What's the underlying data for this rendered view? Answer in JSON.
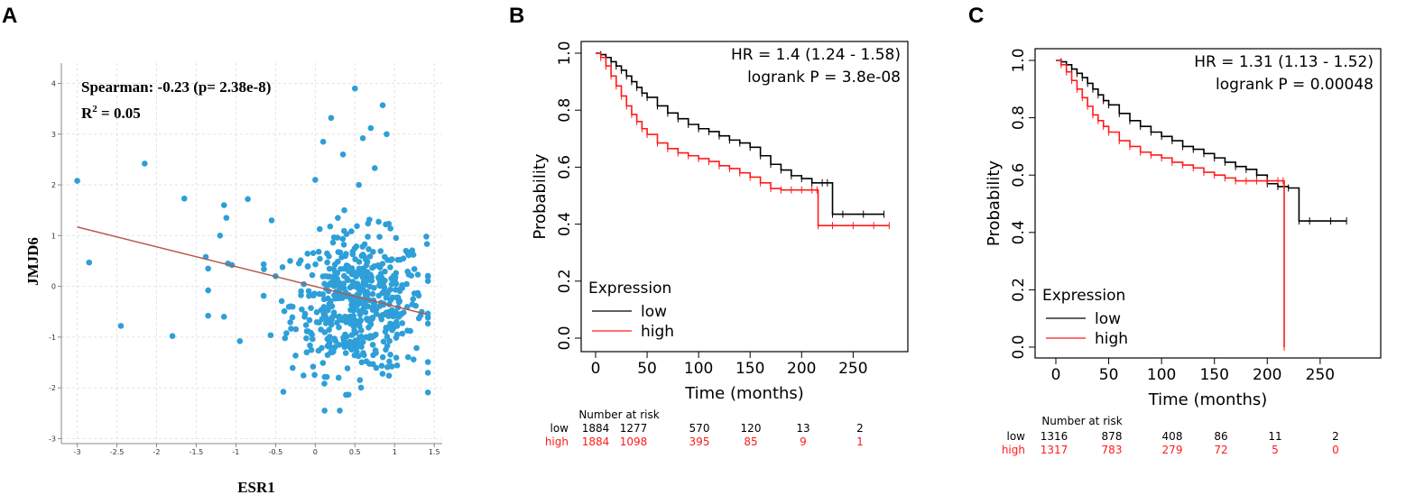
{
  "panel_labels": [
    "A",
    "B",
    "C"
  ],
  "chart_data": [
    {
      "type": "scatter",
      "panel": "A",
      "xlabel": "ESR1",
      "ylabel": "JMJD6",
      "annotation_line1": "Spearman: -0.23 (p= 2.38e-8)",
      "annotation_line2_prefix": "R",
      "annotation_line2_sup": "2",
      "annotation_line2_suffix": " = 0.05",
      "xlim": [
        -3.2,
        1.6
      ],
      "ylim": [
        -3.1,
        4.4
      ],
      "xticks": [
        -3,
        -2.5,
        -2,
        -1.5,
        -1,
        -0.5,
        0,
        0.5,
        1,
        1.5
      ],
      "xtick_labels": [
        "-3",
        "-2.5",
        "-2",
        "-1.5",
        "-1",
        "-0.5",
        "0",
        "0.5",
        "1",
        "1.5"
      ],
      "yticks": [
        -3,
        -2,
        -1,
        0,
        1,
        2,
        3,
        4
      ],
      "ytick_labels": [
        "-3",
        "-2",
        "-1",
        "0",
        "1",
        "2",
        "3",
        "4"
      ],
      "grid": true,
      "point_color": "#2e9fd8",
      "line_color": "#b5584a",
      "fit_line": {
        "x": [
          -3,
          1.4
        ],
        "y": [
          1.17,
          -0.55
        ]
      },
      "points_outliers": [
        [
          -3.0,
          2.08
        ],
        [
          -2.85,
          0.47
        ],
        [
          -2.45,
          -0.78
        ],
        [
          -2.15,
          2.42
        ],
        [
          -1.8,
          -0.98
        ],
        [
          -1.65,
          1.73
        ],
        [
          -1.38,
          0.58
        ],
        [
          -1.35,
          0.35
        ],
        [
          -1.35,
          -0.08
        ],
        [
          -1.35,
          -0.58
        ],
        [
          -1.2,
          1.0
        ],
        [
          -1.15,
          1.6
        ],
        [
          -1.12,
          1.35
        ],
        [
          -1.1,
          0.45
        ],
        [
          -1.15,
          -0.6
        ],
        [
          -1.05,
          0.42
        ],
        [
          -0.95,
          -1.08
        ],
        [
          -0.85,
          1.72
        ],
        [
          -0.55,
          1.3
        ],
        [
          -0.5,
          0.2
        ],
        [
          0.1,
          2.85
        ],
        [
          0.2,
          3.32
        ],
        [
          0.5,
          3.9
        ],
        [
          0.35,
          2.6
        ],
        [
          0.6,
          2.92
        ],
        [
          0.7,
          3.12
        ],
        [
          0.75,
          2.33
        ],
        [
          0.85,
          3.57
        ],
        [
          0.9,
          3.0
        ],
        [
          1.4,
          0.98
        ],
        [
          0.0,
          2.1
        ],
        [
          0.55,
          2.0
        ]
      ],
      "cluster": {
        "n": 540,
        "x_mean": 0.55,
        "x_sd": 0.42,
        "y_mean": -0.35,
        "y_sd": 0.68
      }
    },
    {
      "type": "line",
      "panel": "B",
      "xlabel": "Time (months)",
      "ylabel": "Probability",
      "xlim": [
        0,
        290
      ],
      "ylim": [
        0,
        1
      ],
      "xticks": [
        0,
        50,
        100,
        150,
        200,
        250
      ],
      "xtick_labels": [
        "0",
        "50",
        "100",
        "150",
        "200",
        "250"
      ],
      "yticks": [
        0,
        0.2,
        0.4,
        0.6,
        0.8,
        1.0
      ],
      "ytick_labels": [
        "0.0",
        "0.2",
        "0.4",
        "0.6",
        "0.8",
        "1.0"
      ],
      "hr_text": "HR = 1.4 (1.24 - 1.58)",
      "logrank_text": "logrank P = 3.8e-08",
      "legend_title": "Expression",
      "legend_low": "low",
      "legend_high": "high",
      "series": [
        {
          "name": "low",
          "color": "#000000",
          "x": [
            0,
            5,
            10,
            15,
            20,
            25,
            30,
            35,
            40,
            45,
            50,
            60,
            70,
            80,
            90,
            100,
            110,
            120,
            130,
            140,
            150,
            160,
            170,
            180,
            190,
            200,
            210,
            220,
            225,
            230,
            240,
            260,
            280
          ],
          "y": [
            1.0,
            0.995,
            0.985,
            0.97,
            0.955,
            0.94,
            0.92,
            0.9,
            0.88,
            0.86,
            0.845,
            0.815,
            0.79,
            0.77,
            0.75,
            0.735,
            0.725,
            0.71,
            0.695,
            0.685,
            0.67,
            0.64,
            0.61,
            0.59,
            0.57,
            0.56,
            0.545,
            0.545,
            0.545,
            0.435,
            0.435,
            0.435,
            0.435
          ]
        },
        {
          "name": "high",
          "color": "#ff1a1a",
          "x": [
            0,
            5,
            10,
            15,
            20,
            25,
            30,
            35,
            40,
            45,
            50,
            60,
            70,
            80,
            90,
            100,
            110,
            120,
            130,
            140,
            150,
            160,
            170,
            180,
            190,
            200,
            210,
            215,
            216,
            230,
            250,
            270,
            285
          ],
          "y": [
            1.0,
            0.985,
            0.955,
            0.92,
            0.885,
            0.85,
            0.815,
            0.785,
            0.76,
            0.735,
            0.715,
            0.685,
            0.665,
            0.65,
            0.64,
            0.63,
            0.62,
            0.605,
            0.595,
            0.58,
            0.565,
            0.545,
            0.525,
            0.52,
            0.52,
            0.52,
            0.52,
            0.52,
            0.395,
            0.395,
            0.395,
            0.395,
            0.395
          ]
        }
      ],
      "risk_table": {
        "header": "Number at risk",
        "times": [
          0,
          50,
          100,
          150,
          200,
          250
        ],
        "rows": [
          {
            "name": "low",
            "color": "#000000",
            "values": [
              "1884",
              "1277",
              "570",
              "120",
              "13",
              "2"
            ]
          },
          {
            "name": "high",
            "color": "#ff1a1a",
            "values": [
              "1884",
              "1098",
              "395",
              "85",
              "9",
              "1"
            ]
          }
        ]
      }
    },
    {
      "type": "line",
      "panel": "C",
      "xlabel": "Time (months)",
      "ylabel": "Probability",
      "xlim": [
        0,
        280
      ],
      "ylim": [
        0,
        1
      ],
      "xticks": [
        0,
        50,
        100,
        150,
        200,
        250
      ],
      "xtick_labels": [
        "0",
        "50",
        "100",
        "150",
        "200",
        "250"
      ],
      "yticks": [
        0,
        0.2,
        0.4,
        0.6,
        0.8,
        1.0
      ],
      "ytick_labels": [
        "0.0",
        "0.2",
        "0.4",
        "0.6",
        "0.8",
        "1.0"
      ],
      "hr_text": "HR = 1.31 (1.13 - 1.52)",
      "logrank_text": "logrank P = 0.00048",
      "legend_title": "Expression",
      "legend_low": "low",
      "legend_high": "high",
      "series": [
        {
          "name": "low",
          "color": "#000000",
          "x": [
            0,
            5,
            10,
            15,
            20,
            25,
            30,
            35,
            40,
            45,
            50,
            60,
            70,
            80,
            90,
            100,
            110,
            120,
            130,
            140,
            150,
            160,
            170,
            180,
            190,
            200,
            210,
            220,
            230,
            240,
            260,
            275
          ],
          "y": [
            1.0,
            0.995,
            0.985,
            0.97,
            0.955,
            0.94,
            0.92,
            0.9,
            0.88,
            0.86,
            0.845,
            0.815,
            0.79,
            0.77,
            0.75,
            0.735,
            0.72,
            0.7,
            0.69,
            0.675,
            0.66,
            0.645,
            0.63,
            0.62,
            0.6,
            0.57,
            0.56,
            0.555,
            0.44,
            0.44,
            0.44,
            0.44
          ]
        },
        {
          "name": "high",
          "color": "#ff1a1a",
          "x": [
            0,
            5,
            10,
            15,
            20,
            25,
            30,
            35,
            40,
            45,
            50,
            60,
            70,
            80,
            90,
            100,
            110,
            120,
            130,
            140,
            150,
            160,
            170,
            180,
            190,
            200,
            210,
            215,
            216
          ],
          "y": [
            1.0,
            0.985,
            0.96,
            0.93,
            0.9,
            0.87,
            0.84,
            0.81,
            0.79,
            0.77,
            0.75,
            0.72,
            0.7,
            0.68,
            0.67,
            0.66,
            0.645,
            0.635,
            0.625,
            0.61,
            0.6,
            0.59,
            0.58,
            0.58,
            0.58,
            0.58,
            0.58,
            0.58,
            0.0
          ]
        }
      ],
      "risk_table": {
        "header": "Number at risk",
        "times": [
          0,
          50,
          100,
          150,
          200,
          250
        ],
        "rows": [
          {
            "name": "low",
            "color": "#000000",
            "values": [
              "1316",
              "878",
              "408",
              "86",
              "11",
              "2"
            ]
          },
          {
            "name": "high",
            "color": "#ff1a1a",
            "values": [
              "1317",
              "783",
              "279",
              "72",
              "5",
              "0"
            ]
          }
        ]
      }
    }
  ]
}
